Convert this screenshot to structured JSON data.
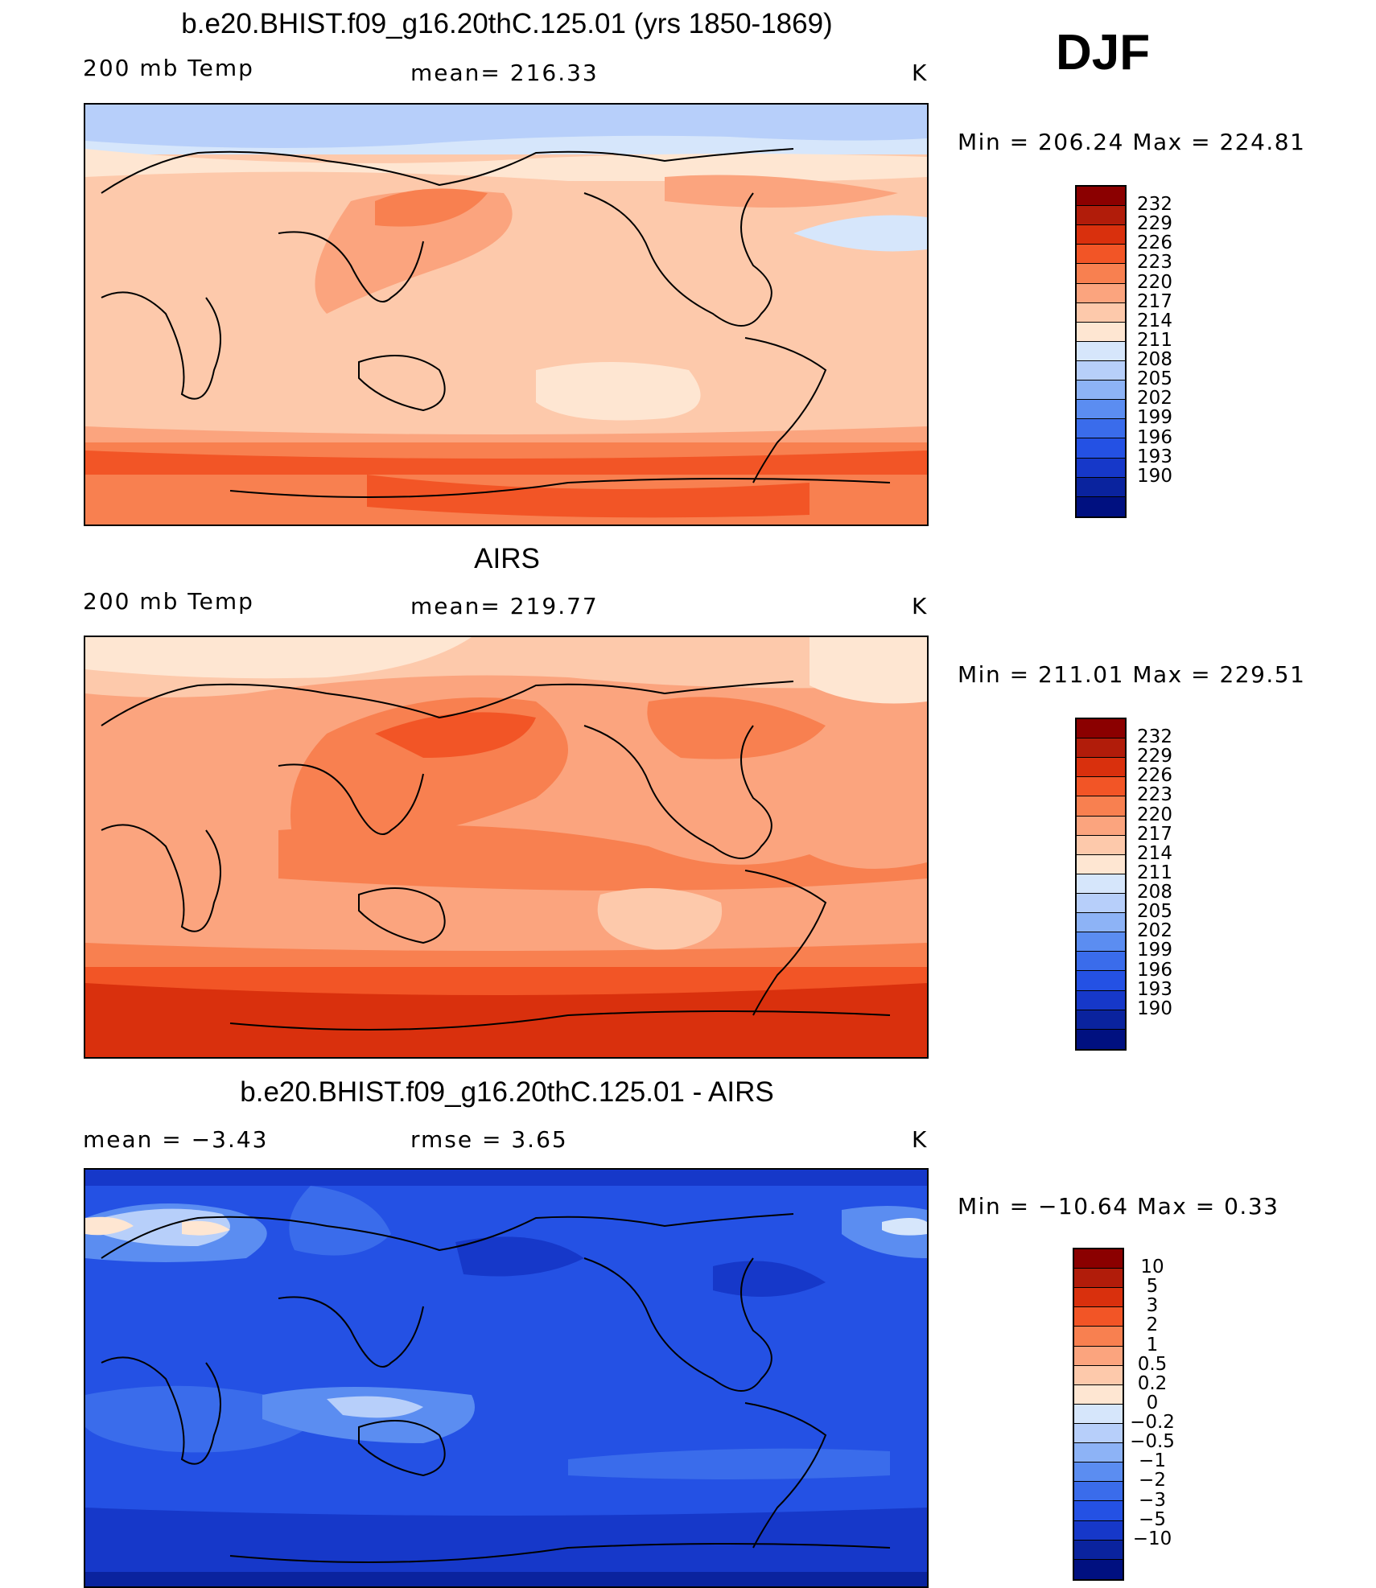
{
  "season": "DJF",
  "panels": [
    {
      "title": "b.e20.BHIST.f09_g16.20thC.125.01 (yrs 1850-1869)",
      "left_label": "200 mb Temp",
      "mid_label": "mean=  216.33",
      "units": "K",
      "minmax": "Min  =  206.24  Max  =  224.81",
      "map_description": "model 200 mb temperature",
      "colorbar_colors": [
        "#8b0000",
        "#b11c0a",
        "#d9300d",
        "#f25526",
        "#f88050",
        "#fba47e",
        "#fdc9ab",
        "#fee6d2",
        "#d6e6fb",
        "#b7cffa",
        "#8db3f6",
        "#5b8df1",
        "#3a6ceb",
        "#2451e4",
        "#1638c9",
        "#0a239e",
        "#001080"
      ],
      "colorbar_labels": [
        "232",
        "229",
        "226",
        "223",
        "220",
        "217",
        "214",
        "211",
        "208",
        "205",
        "202",
        "199",
        "196",
        "193",
        "190"
      ]
    },
    {
      "title": "AIRS",
      "left_label": "200 mb Temp",
      "mid_label": "mean=  219.77",
      "units": "K",
      "minmax": "Min  =  211.01  Max  =  229.51",
      "map_description": "AIRS 200 mb temperature",
      "colorbar_colors": [
        "#8b0000",
        "#b11c0a",
        "#d9300d",
        "#f25526",
        "#f88050",
        "#fba47e",
        "#fdc9ab",
        "#fee6d2",
        "#d6e6fb",
        "#b7cffa",
        "#8db3f6",
        "#5b8df1",
        "#3a6ceb",
        "#2451e4",
        "#1638c9",
        "#0a239e",
        "#001080"
      ],
      "colorbar_labels": [
        "232",
        "229",
        "226",
        "223",
        "220",
        "217",
        "214",
        "211",
        "208",
        "205",
        "202",
        "199",
        "196",
        "193",
        "190"
      ]
    },
    {
      "title": "b.e20.BHIST.f09_g16.20thC.125.01 - AIRS",
      "left_label": "mean =    −3.43",
      "mid_label": "rmse =     3.65",
      "units": "K",
      "minmax": "Min  =  −10.64  Max  =      0.33",
      "map_description": "difference model minus AIRS",
      "colorbar_colors": [
        "#8b0000",
        "#b11c0a",
        "#d9300d",
        "#f25526",
        "#f88050",
        "#fba47e",
        "#fdc9ab",
        "#fee6d2",
        "#d6e6fb",
        "#b7cffa",
        "#8db3f6",
        "#5b8df1",
        "#3a6ceb",
        "#2451e4",
        "#1638c9",
        "#0a239e",
        "#001080"
      ],
      "colorbar_labels": [
        "10",
        "5",
        "3",
        "2",
        "1",
        "0.5",
        "0.2",
        "0",
        "−0.2",
        "−0.5",
        "−1",
        "−2",
        "−3",
        "−5",
        "−10"
      ]
    }
  ],
  "chart_data": [
    {
      "type": "heatmap",
      "title": "b.e20.BHIST.f09_g16.20thC.125.01 (yrs 1850-1869)",
      "variable": "200 mb Temp",
      "units": "K",
      "mean": 216.33,
      "min": 206.24,
      "max": 224.81,
      "contour_levels": [
        190,
        193,
        196,
        199,
        202,
        205,
        208,
        211,
        214,
        217,
        220,
        223,
        226,
        229,
        232
      ]
    },
    {
      "type": "heatmap",
      "title": "AIRS",
      "variable": "200 mb Temp",
      "units": "K",
      "mean": 219.77,
      "min": 211.01,
      "max": 229.51,
      "contour_levels": [
        190,
        193,
        196,
        199,
        202,
        205,
        208,
        211,
        214,
        217,
        220,
        223,
        226,
        229,
        232
      ]
    },
    {
      "type": "heatmap",
      "title": "b.e20.BHIST.f09_g16.20thC.125.01 - AIRS",
      "units": "K",
      "mean": -3.43,
      "rmse": 3.65,
      "min": -10.64,
      "max": 0.33,
      "contour_levels": [
        -10,
        -5,
        -3,
        -2,
        -1,
        -0.5,
        -0.2,
        0,
        0.2,
        0.5,
        1,
        2,
        3,
        5,
        10
      ]
    }
  ]
}
